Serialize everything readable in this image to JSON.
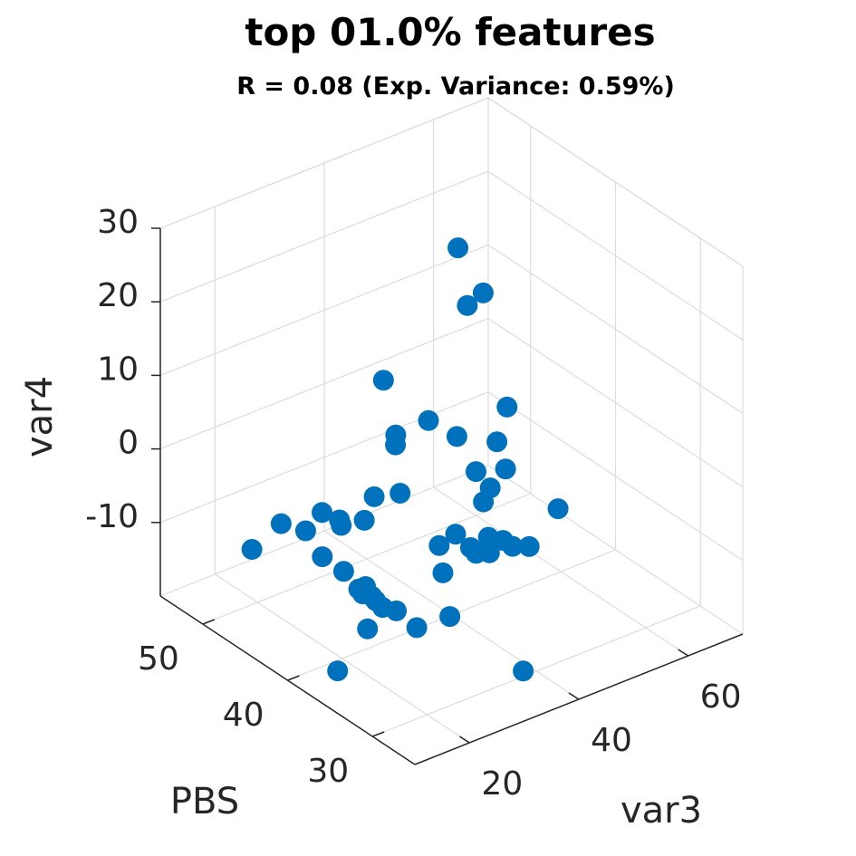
{
  "chart_data": {
    "type": "scatter",
    "title": "top 01.0% features",
    "subtitle": "R = 0.08 (Exp. Variance: 0.59%)",
    "xlabel": "var3",
    "ylabel": "PBS",
    "zlabel": "var4",
    "xlim": [
      10,
      70
    ],
    "ylim": [
      25,
      55
    ],
    "zlim": [
      -20,
      30
    ],
    "xticks": [
      20,
      40,
      60
    ],
    "yticks": [
      30,
      40,
      50
    ],
    "zticks": [
      -10,
      0,
      10,
      20,
      30
    ],
    "xtick_labels": [
      "20",
      "40",
      "60"
    ],
    "ytick_labels": [
      "30",
      "40",
      "50"
    ],
    "ztick_labels": [
      "-10",
      "0",
      "10",
      "20",
      "30"
    ],
    "grid": true,
    "marker_color": "#0072BD",
    "points": [
      {
        "x": 48.0,
        "y": 44.4,
        "z": 24.2
      },
      {
        "x": 52.0,
        "y": 44.0,
        "z": 17.2
      },
      {
        "x": 50.8,
        "y": 45.1,
        "z": 15.0
      },
      {
        "x": 50.0,
        "y": 39.9,
        "z": 5.4
      },
      {
        "x": 37.8,
        "y": 41.3,
        "z": 6.1
      },
      {
        "x": 41.6,
        "y": 40.4,
        "z": 3.5
      },
      {
        "x": 47.4,
        "y": 38.4,
        "z": -1.1
      },
      {
        "x": 42.3,
        "y": 38.6,
        "z": -0.1
      },
      {
        "x": 51.1,
        "y": 41.8,
        "z": -1.1
      },
      {
        "x": 28.1,
        "y": 38.4,
        "z": 1.3
      },
      {
        "x": 33.0,
        "y": 42.1,
        "z": 3.6
      },
      {
        "x": 36.0,
        "y": 44.0,
        "z": 2.6
      },
      {
        "x": 38.1,
        "y": 46.8,
        "z": 7.3
      },
      {
        "x": 40.3,
        "y": 33.0,
        "z": -5.4
      },
      {
        "x": 53.9,
        "y": 36.4,
        "z": -6.9
      },
      {
        "x": 20.6,
        "y": 44.7,
        "z": -6.4
      },
      {
        "x": 27.6,
        "y": 42.3,
        "z": -5.2
      },
      {
        "x": 20.9,
        "y": 40.7,
        "z": -2.7
      },
      {
        "x": 22.2,
        "y": 43.8,
        "z": -3.7
      },
      {
        "x": 25.7,
        "y": 44.0,
        "z": -5.9
      },
      {
        "x": 21.5,
        "y": 40.8,
        "z": -9.2
      },
      {
        "x": 23.1,
        "y": 49.2,
        "z": -9.6
      },
      {
        "x": 16.2,
        "y": 48.2,
        "z": -10.3
      },
      {
        "x": 19.3,
        "y": 41.9,
        "z": -7.4
      },
      {
        "x": 30.5,
        "y": 43.0,
        "z": -3.4
      },
      {
        "x": 44.9,
        "y": 39.4,
        "z": -5.6
      },
      {
        "x": 46.3,
        "y": 39.5,
        "z": -4.2
      },
      {
        "x": 35.4,
        "y": 34.8,
        "z": -5.5
      },
      {
        "x": 33.7,
        "y": 37.4,
        "z": -6.7
      },
      {
        "x": 41.5,
        "y": 34.9,
        "z": -6.4
      },
      {
        "x": 43.8,
        "y": 33.3,
        "z": -6.7
      },
      {
        "x": 39.6,
        "y": 35.4,
        "z": -5.8
      },
      {
        "x": 37.8,
        "y": 38.1,
        "z": -6.9
      },
      {
        "x": 38.6,
        "y": 36.2,
        "z": -8.3
      },
      {
        "x": 40.1,
        "y": 35.6,
        "z": -8.2
      },
      {
        "x": 22.4,
        "y": 38.8,
        "z": -10.0
      },
      {
        "x": 20.1,
        "y": 35.3,
        "z": -9.5
      },
      {
        "x": 24.0,
        "y": 36.2,
        "z": -11.8
      },
      {
        "x": 23.7,
        "y": 33.6,
        "z": -12.0
      },
      {
        "x": 20.9,
        "y": 37.6,
        "z": -14.4
      },
      {
        "x": 30.0,
        "y": 42.5,
        "z": -17.0
      },
      {
        "x": 26.4,
        "y": 41.7,
        "z": -14.4
      },
      {
        "x": 27.9,
        "y": 41.6,
        "z": -15.1
      },
      {
        "x": 29.7,
        "y": 44.3,
        "z": -16.7
      },
      {
        "x": 34.1,
        "y": 36.4,
        "z": -15.7
      },
      {
        "x": 37.8,
        "y": 39.6,
        "z": -13.3
      },
      {
        "x": 16.2,
        "y": 38.1,
        "z": -19.1
      },
      {
        "x": 37.9,
        "y": 30.2,
        "z": -19.5
      }
    ]
  }
}
